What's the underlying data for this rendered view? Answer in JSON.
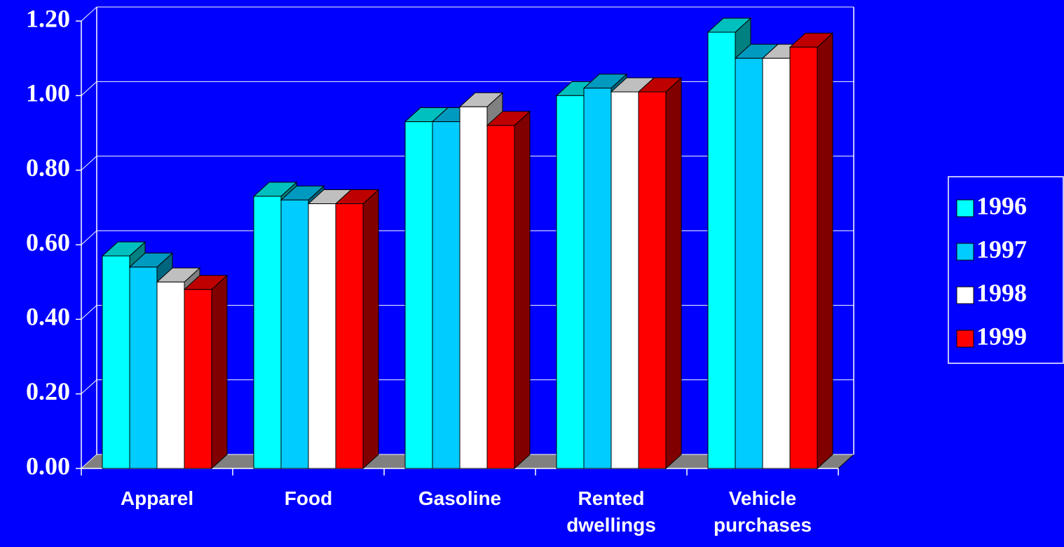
{
  "chart_data": {
    "type": "bar3d",
    "categories": [
      "Apparel",
      "Food",
      "Gasoline",
      "Rented dwellings",
      "Vehicle purchases"
    ],
    "series": [
      {
        "name": "1996",
        "color": "#00ffff",
        "values": [
          0.57,
          0.73,
          0.93,
          1.0,
          1.17
        ]
      },
      {
        "name": "1997",
        "color": "#00ccff",
        "values": [
          0.54,
          0.72,
          0.93,
          1.02,
          1.1
        ]
      },
      {
        "name": "1998",
        "color": "#ffffff",
        "values": [
          0.5,
          0.71,
          0.97,
          1.01,
          1.1
        ]
      },
      {
        "name": "1999",
        "color": "#ff0000",
        "values": [
          0.48,
          0.71,
          0.92,
          1.01,
          1.13
        ]
      }
    ],
    "ylim": [
      0,
      1.2
    ],
    "yticks": [
      {
        "value": 0,
        "label": "0.00"
      },
      {
        "value": 0.2,
        "label": "0.20"
      },
      {
        "value": 0.4,
        "label": "0.40"
      },
      {
        "value": 0.6,
        "label": "0.60"
      },
      {
        "value": 0.8,
        "label": "0.80"
      },
      {
        "value": 1.0,
        "label": "1.00"
      },
      {
        "value": 1.2,
        "label": "1.20"
      }
    ],
    "grid": true,
    "legend": "right"
  }
}
